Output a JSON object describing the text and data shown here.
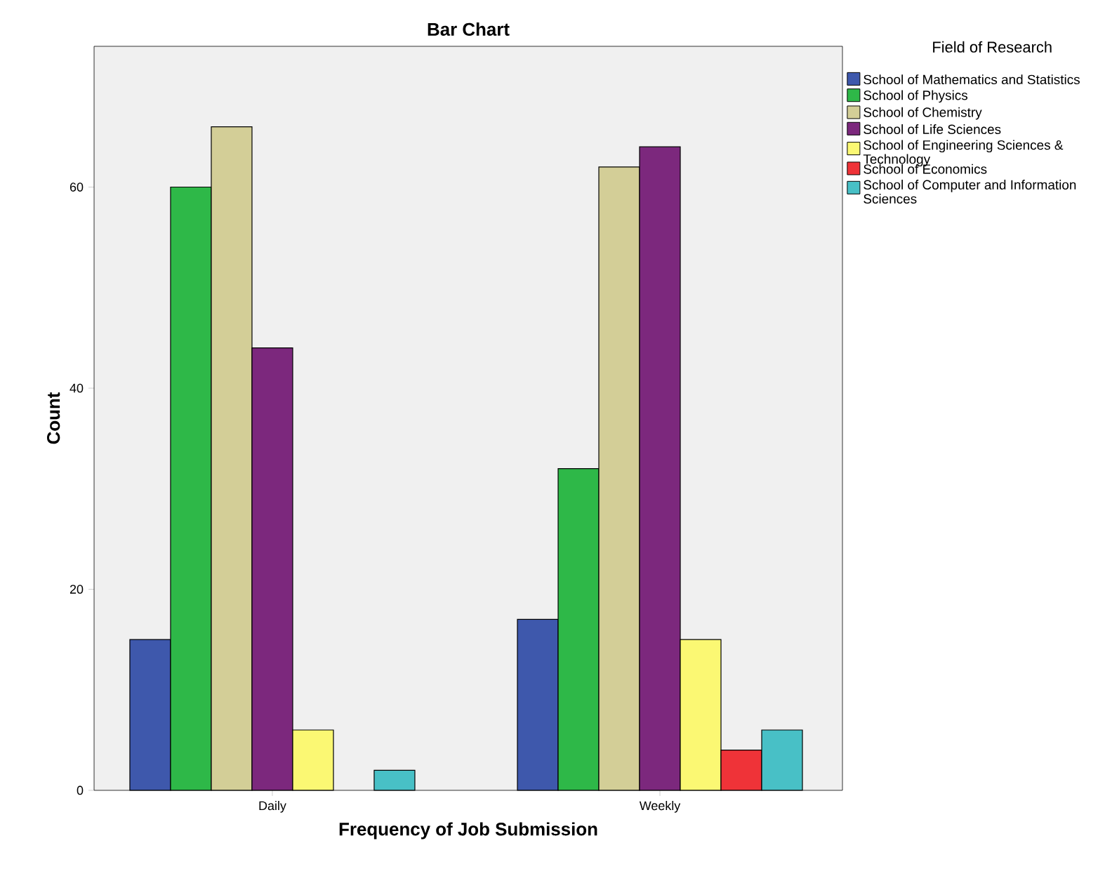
{
  "chart_data": {
    "type": "bar",
    "title": "Bar Chart",
    "xlabel": "Frequency of Job Submission",
    "ylabel": "Count",
    "legend_title": "Field of Research",
    "legend": "right",
    "categories": [
      "Daily",
      "Weekly"
    ],
    "ylim": [
      0,
      74
    ],
    "yticks": [
      0,
      20,
      40,
      60
    ],
    "series": [
      {
        "name": "School of Mathematics and Statistics",
        "color": "#3e58ac",
        "values": [
          15,
          17
        ]
      },
      {
        "name": "School of Physics",
        "color": "#2eb848",
        "values": [
          60,
          32
        ]
      },
      {
        "name": "School of Chemistry",
        "color": "#d3ce97",
        "values": [
          66,
          62
        ]
      },
      {
        "name": "School of Life Sciences",
        "color": "#7c287d",
        "values": [
          44,
          64
        ]
      },
      {
        "name": "School of Engineering Sciences & Technology",
        "color": "#fbf873",
        "values": [
          6,
          15
        ]
      },
      {
        "name": "School of Economics",
        "color": "#ef3338",
        "values": [
          null,
          4
        ]
      },
      {
        "name": "School of Computer and Information Sciences",
        "color": "#48c0c6",
        "values": [
          2,
          6
        ]
      }
    ]
  }
}
